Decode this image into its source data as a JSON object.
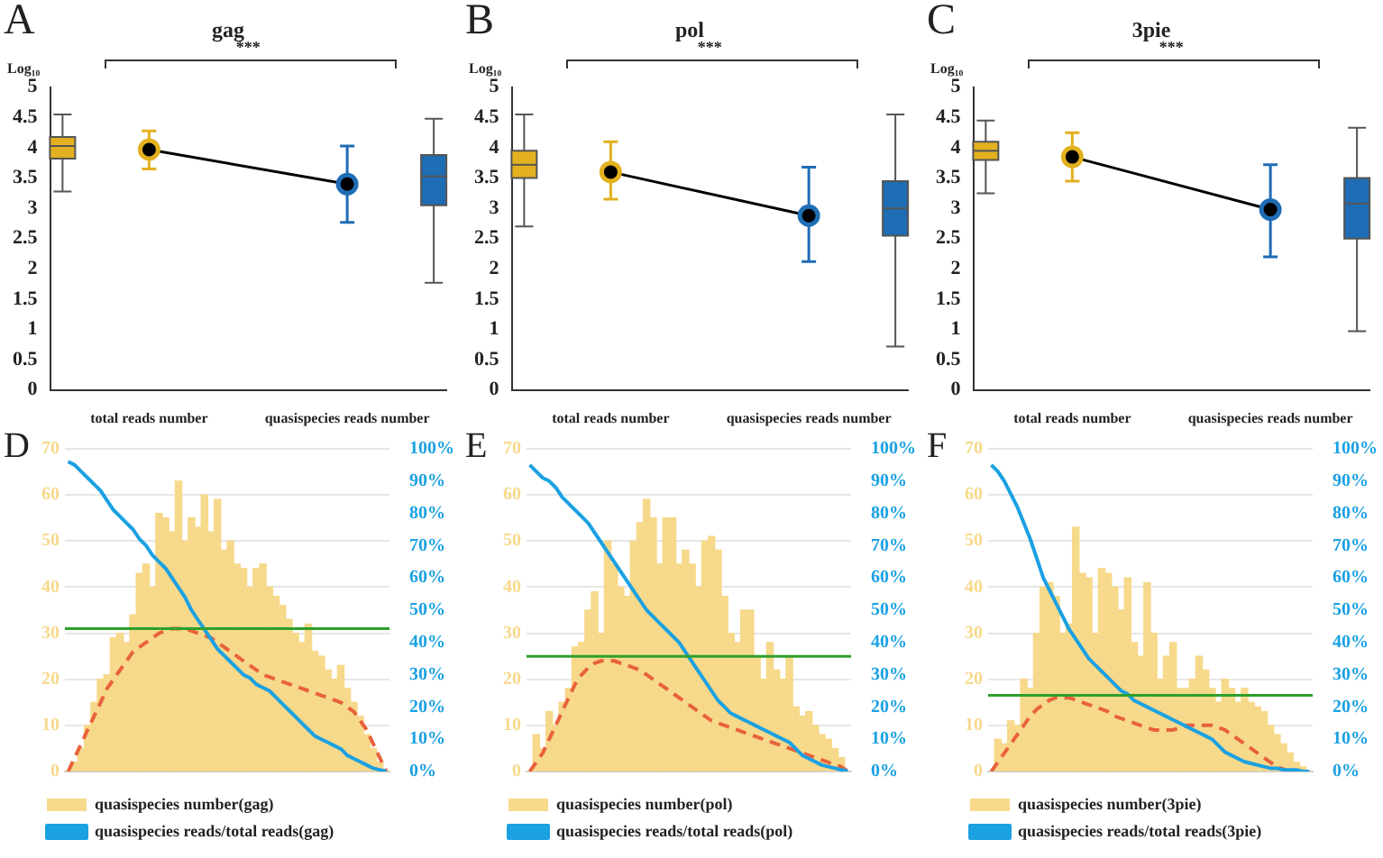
{
  "chart_data": [
    {
      "type": "box",
      "title": "gag",
      "ylabel": "Log₁₀",
      "annotations": [
        "A",
        "***"
      ],
      "categories": [
        "total reads number",
        "quasispecies reads number"
      ],
      "ylim": [
        0,
        5
      ],
      "yticks": [
        0,
        0.5,
        1,
        1.5,
        2,
        2.5,
        3,
        3.5,
        4,
        4.5,
        5
      ],
      "grid": false,
      "series": [
        {
          "type": "box",
          "colors": [
            "#e3b01f",
            "#1f6db5"
          ],
          "boxes": [
            {
              "low": 3.28,
              "q1": 3.82,
              "median": 4.03,
              "q3": 4.18,
              "high": 4.55
            },
            {
              "low": 1.77,
              "q1": 3.05,
              "median": 3.53,
              "q3": 3.88,
              "high": 4.48
            }
          ]
        },
        {
          "type": "line",
          "color": "#000000",
          "colors": [
            "#e3b01f",
            "#1f6db5"
          ],
          "marker": "circle",
          "values": [
            3.97,
            3.4
          ],
          "errors": [
            [
              3.65,
              4.28
            ],
            [
              2.77,
              4.03
            ]
          ]
        }
      ]
    },
    {
      "type": "box",
      "title": "pol",
      "ylabel": "Log₁₀",
      "annotations": [
        "B",
        "***"
      ],
      "categories": [
        "total reads number",
        "quasispecies reads number"
      ],
      "ylim": [
        0,
        5
      ],
      "yticks": [
        0,
        0.5,
        1,
        1.5,
        2,
        2.5,
        3,
        3.5,
        4,
        4.5,
        5
      ],
      "grid": false,
      "series": [
        {
          "type": "box",
          "colors": [
            "#e3b01f",
            "#1f6db5"
          ],
          "boxes": [
            {
              "low": 2.7,
              "q1": 3.5,
              "median": 3.72,
              "q3": 3.95,
              "high": 4.55
            },
            {
              "low": 0.72,
              "q1": 2.55,
              "median": 3.0,
              "q3": 3.45,
              "high": 4.55
            }
          ]
        },
        {
          "type": "line",
          "color": "#000000",
          "colors": [
            "#e3b01f",
            "#1f6db5"
          ],
          "marker": "circle",
          "values": [
            3.6,
            2.88
          ],
          "errors": [
            [
              3.15,
              4.1
            ],
            [
              2.12,
              3.68
            ]
          ]
        }
      ]
    },
    {
      "type": "box",
      "title": "3pie",
      "ylabel": "Log₁₀",
      "annotations": [
        "C",
        "***"
      ],
      "categories": [
        "total reads number",
        "quasispecies reads number"
      ],
      "ylim": [
        0,
        5
      ],
      "yticks": [
        0,
        0.5,
        1,
        1.5,
        2,
        2.5,
        3,
        3.5,
        4,
        4.5,
        5
      ],
      "grid": false,
      "series": [
        {
          "type": "box",
          "colors": [
            "#e3b01f",
            "#1f6db5"
          ],
          "boxes": [
            {
              "low": 3.25,
              "q1": 3.8,
              "median": 3.95,
              "q3": 4.1,
              "high": 4.45
            },
            {
              "low": 0.97,
              "q1": 2.5,
              "median": 3.08,
              "q3": 3.5,
              "high": 4.33
            }
          ]
        },
        {
          "type": "line",
          "color": "#000000",
          "colors": [
            "#e3b01f",
            "#1f6db5"
          ],
          "marker": "circle",
          "values": [
            3.85,
            2.98
          ],
          "errors": [
            [
              3.45,
              4.25
            ],
            [
              2.2,
              3.72
            ]
          ]
        }
      ]
    },
    {
      "type": "bar",
      "annotations": [
        "D"
      ],
      "categories": [
        null,
        null,
        null,
        null,
        null,
        null,
        null,
        null,
        null,
        null,
        null,
        null,
        null,
        null,
        null,
        null,
        null,
        null,
        null,
        null,
        null,
        null,
        null,
        null,
        null,
        null,
        null,
        null,
        null,
        null,
        null,
        null,
        null,
        null,
        null,
        null,
        null,
        null,
        null,
        null,
        null,
        null,
        null,
        null,
        null,
        null,
        null,
        null,
        null,
        null
      ],
      "ylim": [
        0,
        70
      ],
      "yticks": [
        0,
        10,
        20,
        30,
        40,
        50,
        60,
        70
      ],
      "y2lim": [
        0,
        100
      ],
      "y2ticks": [
        {
          "value": 0,
          "label": "0%"
        },
        {
          "value": 10,
          "label": "10%"
        },
        {
          "value": 20,
          "label": "20%"
        },
        {
          "value": 30,
          "label": "30%"
        },
        {
          "value": 40,
          "label": "40%"
        },
        {
          "value": 50,
          "label": "50%"
        },
        {
          "value": 60,
          "label": "60%"
        },
        {
          "value": 70,
          "label": "70%"
        },
        {
          "value": 80,
          "label": "80%"
        },
        {
          "value": 90,
          "label": "90%"
        },
        {
          "value": 100,
          "label": "100%"
        }
      ],
      "grid": "y",
      "legend": "bottom",
      "ref_lines": [
        {
          "axis": "y",
          "value": 31,
          "color": "#2ca02c"
        }
      ],
      "series": [
        {
          "type": "bar",
          "name": "quasispecies number(gag)",
          "color": "#f7d98b",
          "values": [
            0,
            2,
            5,
            10,
            15,
            20,
            21,
            29,
            30,
            28,
            34,
            43,
            45,
            40,
            56,
            55,
            52,
            63,
            50,
            55,
            53,
            60,
            52,
            59,
            48,
            50,
            45,
            44,
            40,
            44,
            45,
            40,
            38,
            36,
            33,
            30,
            28,
            32,
            26,
            25,
            22,
            20,
            23,
            18,
            15,
            12,
            8,
            5,
            2,
            0
          ]
        },
        {
          "type": "line",
          "name": "quasispecies reads/total reads(gag)",
          "axis": "y2",
          "color": "#1ba1e2",
          "marker": "none",
          "values": [
            96,
            95,
            93,
            91,
            89,
            87,
            84,
            81,
            79,
            77,
            75,
            72,
            70,
            67,
            65,
            63,
            60,
            57,
            54,
            50,
            47,
            44,
            41,
            38,
            36,
            34,
            32,
            30,
            29,
            27,
            26,
            25,
            23,
            21,
            19,
            17,
            15,
            13,
            11,
            10,
            9,
            8,
            7,
            5,
            4,
            3,
            2,
            1,
            0.5,
            0
          ]
        },
        {
          "type": "line",
          "color": "#e8623c",
          "marker": "none",
          "line_style": "dashed",
          "values": [
            0,
            3,
            6,
            9,
            12,
            15,
            18,
            20,
            22,
            24,
            26,
            27,
            28,
            29,
            30,
            30.5,
            31,
            31,
            31,
            30.5,
            30,
            29.5,
            29,
            28,
            27,
            26,
            25,
            24,
            23,
            22,
            21,
            20.5,
            20,
            19.5,
            19,
            18.5,
            18,
            17.5,
            17,
            16.5,
            16,
            15.5,
            15,
            14,
            13,
            11,
            9,
            6,
            3,
            0
          ]
        }
      ]
    },
    {
      "type": "bar",
      "annotations": [
        "E"
      ],
      "categories": [
        null,
        null,
        null,
        null,
        null,
        null,
        null,
        null,
        null,
        null,
        null,
        null,
        null,
        null,
        null,
        null,
        null,
        null,
        null,
        null,
        null,
        null,
        null,
        null,
        null,
        null,
        null,
        null,
        null,
        null,
        null,
        null,
        null,
        null,
        null,
        null,
        null,
        null,
        null,
        null,
        null,
        null,
        null,
        null,
        null,
        null,
        null,
        null,
        null,
        null
      ],
      "ylim": [
        0,
        70
      ],
      "yticks": [
        0,
        10,
        20,
        30,
        40,
        50,
        60,
        70
      ],
      "y2lim": [
        0,
        100
      ],
      "y2ticks": [
        {
          "value": 0,
          "label": "0%"
        },
        {
          "value": 10,
          "label": "10%"
        },
        {
          "value": 20,
          "label": "20%"
        },
        {
          "value": 30,
          "label": "30%"
        },
        {
          "value": 40,
          "label": "40%"
        },
        {
          "value": 50,
          "label": "50%"
        },
        {
          "value": 60,
          "label": "60%"
        },
        {
          "value": 70,
          "label": "70%"
        },
        {
          "value": 80,
          "label": "80%"
        },
        {
          "value": 90,
          "label": "90%"
        },
        {
          "value": 100,
          "label": "100%"
        }
      ],
      "grid": "y",
      "legend": "bottom",
      "ref_lines": [
        {
          "axis": "y",
          "value": 25,
          "color": "#2ca02c"
        }
      ],
      "series": [
        {
          "type": "bar",
          "name": "quasispecies number(pol)",
          "color": "#f7d98b",
          "values": [
            0,
            8,
            5,
            13,
            10,
            15,
            18,
            27,
            28,
            35,
            39,
            30,
            50,
            45,
            40,
            38,
            50,
            54,
            59,
            55,
            45,
            55,
            55,
            45,
            48,
            45,
            40,
            50,
            51,
            48,
            38,
            30,
            28,
            35,
            35,
            25,
            20,
            28,
            22,
            20,
            25,
            14,
            12,
            13,
            10,
            8,
            7,
            5,
            3,
            0
          ]
        },
        {
          "type": "line",
          "name": "quasispecies reads/total reads(pol)",
          "axis": "y2",
          "color": "#1ba1e2",
          "marker": "none",
          "values": [
            95,
            93,
            91,
            90,
            88,
            85,
            83,
            81,
            79,
            77,
            74,
            71,
            68,
            65,
            62,
            59,
            56,
            53,
            50,
            48,
            46,
            44,
            42,
            40,
            37,
            34,
            31,
            28,
            25,
            22,
            20,
            18,
            17,
            16,
            15,
            14,
            13,
            12,
            11,
            10,
            9,
            7,
            5,
            4,
            3,
            2,
            1.5,
            1,
            0.5,
            0
          ]
        },
        {
          "type": "line",
          "color": "#e8623c",
          "marker": "none",
          "line_style": "dashed",
          "values": [
            0,
            2,
            4,
            7,
            10,
            13,
            16,
            19,
            21,
            22.5,
            23.5,
            24,
            24,
            24,
            23.5,
            23,
            22.5,
            22,
            21,
            20,
            19,
            18,
            17,
            16,
            15,
            14,
            13,
            12,
            11,
            10.5,
            10,
            9.5,
            9,
            8.5,
            8,
            7.5,
            7,
            6.5,
            6,
            5.5,
            5,
            4.5,
            4,
            3.5,
            3,
            2.5,
            2,
            1.5,
            1,
            0
          ]
        }
      ]
    },
    {
      "type": "bar",
      "annotations": [
        "F"
      ],
      "categories": [
        null,
        null,
        null,
        null,
        null,
        null,
        null,
        null,
        null,
        null,
        null,
        null,
        null,
        null,
        null,
        null,
        null,
        null,
        null,
        null,
        null,
        null,
        null,
        null,
        null,
        null,
        null,
        null,
        null,
        null,
        null,
        null,
        null,
        null,
        null,
        null,
        null,
        null,
        null,
        null,
        null,
        null,
        null,
        null,
        null,
        null,
        null,
        null,
        null,
        null
      ],
      "ylim": [
        0,
        70
      ],
      "yticks": [
        0,
        10,
        20,
        30,
        40,
        50,
        60,
        70
      ],
      "y2lim": [
        0,
        100
      ],
      "y2ticks": [
        {
          "value": 0,
          "label": "0%"
        },
        {
          "value": 10,
          "label": "10%"
        },
        {
          "value": 20,
          "label": "20%"
        },
        {
          "value": 30,
          "label": "30%"
        },
        {
          "value": 40,
          "label": "40%"
        },
        {
          "value": 50,
          "label": "50%"
        },
        {
          "value": 60,
          "label": "60%"
        },
        {
          "value": 70,
          "label": "70%"
        },
        {
          "value": 80,
          "label": "80%"
        },
        {
          "value": 90,
          "label": "90%"
        },
        {
          "value": 100,
          "label": "100%"
        }
      ],
      "grid": "y",
      "legend": "bottom",
      "ref_lines": [
        {
          "axis": "y",
          "value": 16.5,
          "color": "#2ca02c"
        }
      ],
      "series": [
        {
          "type": "bar",
          "name": "quasispecies number(3pie)",
          "color": "#f7d98b",
          "values": [
            0,
            7,
            6,
            11,
            10,
            20,
            18,
            30,
            40,
            41,
            38,
            30,
            32,
            53,
            43,
            42,
            30,
            44,
            43,
            40,
            35,
            42,
            28,
            25,
            41,
            30,
            20,
            25,
            28,
            18,
            18,
            20,
            25,
            22,
            18,
            15,
            20,
            18,
            15,
            18,
            15,
            14,
            13,
            10,
            8,
            6,
            4,
            2,
            1,
            0
          ]
        },
        {
          "type": "line",
          "name": "quasispecies reads/total reads(3pie)",
          "axis": "y2",
          "color": "#1ba1e2",
          "marker": "none",
          "values": [
            95,
            93,
            90,
            86,
            82,
            77,
            72,
            66,
            60,
            56,
            52,
            48,
            44,
            41,
            38,
            35,
            33,
            31,
            29,
            27,
            25,
            24,
            22,
            21,
            20,
            19,
            18,
            17,
            16,
            15,
            14,
            13,
            12,
            11,
            10,
            8,
            6,
            5,
            4,
            3,
            2.5,
            2,
            1.5,
            1,
            1,
            0.5,
            0.5,
            0.5,
            0,
            0
          ]
        },
        {
          "type": "line",
          "color": "#e8623c",
          "marker": "none",
          "line_style": "dashed",
          "values": [
            0,
            2,
            4,
            6,
            8,
            10,
            12,
            13.5,
            14.5,
            15.5,
            16,
            16,
            16,
            15.5,
            15,
            14.5,
            14,
            13.5,
            13,
            12,
            11.5,
            11,
            10.5,
            10,
            9.5,
            9,
            9,
            9,
            9,
            9.5,
            10,
            10,
            10,
            10,
            10,
            9.5,
            9,
            8,
            7,
            6,
            5,
            4,
            3,
            2,
            1,
            0.5,
            0,
            0,
            0,
            0
          ]
        }
      ]
    }
  ]
}
